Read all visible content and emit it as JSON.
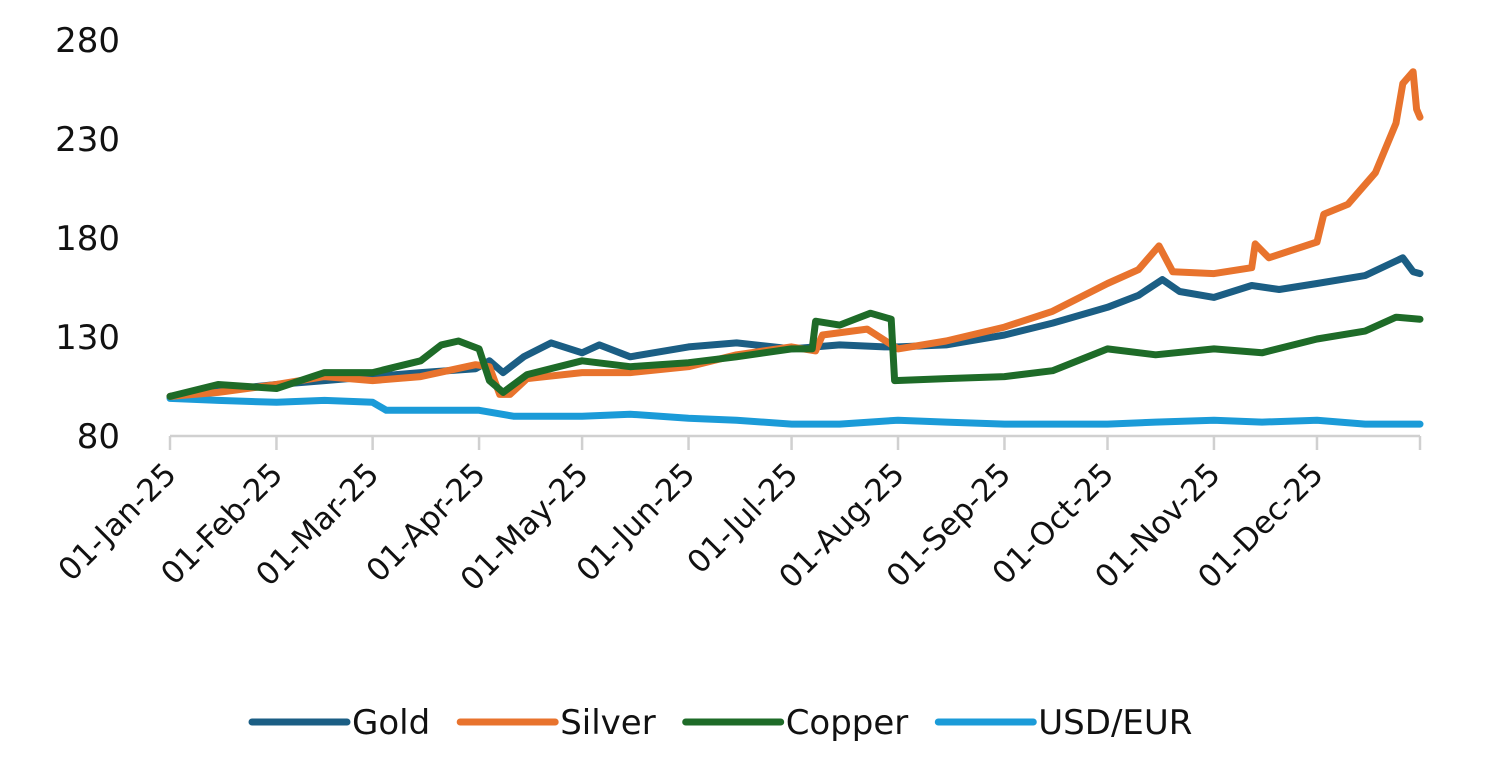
{
  "chart_data": {
    "type": "line",
    "title": "",
    "xlabel": "",
    "ylabel": "",
    "ylim": [
      80,
      280
    ],
    "y_ticks": [
      "80",
      "130",
      "180",
      "230",
      "280"
    ],
    "xlim": [
      "2025-01-01",
      "2025-12-31"
    ],
    "x_ticks": [
      {
        "date": "2025-01-01",
        "label": "01-Jan-25"
      },
      {
        "date": "2025-02-01",
        "label": "01-Feb-25"
      },
      {
        "date": "2025-03-01",
        "label": "01-Mar-25"
      },
      {
        "date": "2025-04-01",
        "label": "01-Apr-25"
      },
      {
        "date": "2025-05-01",
        "label": "01-May-25"
      },
      {
        "date": "2025-06-01",
        "label": "01-Jun-25"
      },
      {
        "date": "2025-07-01",
        "label": "01-Jul-25"
      },
      {
        "date": "2025-08-01",
        "label": "01-Aug-25"
      },
      {
        "date": "2025-09-01",
        "label": "01-Sep-25"
      },
      {
        "date": "2025-10-01",
        "label": "01-Oct-25"
      },
      {
        "date": "2025-11-01",
        "label": "01-Nov-25"
      },
      {
        "date": "2025-12-01",
        "label": "01-Dec-25"
      }
    ],
    "grid": false,
    "legend_position": "bottom",
    "series": [
      {
        "name": "Gold",
        "color": "#1b5e84",
        "points": [
          [
            "2025-01-01",
            100
          ],
          [
            "2025-01-15",
            103
          ],
          [
            "2025-02-01",
            106
          ],
          [
            "2025-02-15",
            108
          ],
          [
            "2025-03-01",
            110
          ],
          [
            "2025-03-15",
            112
          ],
          [
            "2025-03-31",
            114
          ],
          [
            "2025-04-04",
            118
          ],
          [
            "2025-04-08",
            112
          ],
          [
            "2025-04-14",
            120
          ],
          [
            "2025-04-22",
            127
          ],
          [
            "2025-05-01",
            122
          ],
          [
            "2025-05-06",
            126
          ],
          [
            "2025-05-15",
            120
          ],
          [
            "2025-06-01",
            125
          ],
          [
            "2025-06-15",
            127
          ],
          [
            "2025-07-01",
            124
          ],
          [
            "2025-07-15",
            126
          ],
          [
            "2025-07-28",
            125
          ],
          [
            "2025-08-01",
            125
          ],
          [
            "2025-08-15",
            126
          ],
          [
            "2025-09-01",
            131
          ],
          [
            "2025-09-15",
            137
          ],
          [
            "2025-10-01",
            145
          ],
          [
            "2025-10-10",
            151
          ],
          [
            "2025-10-17",
            159
          ],
          [
            "2025-10-22",
            153
          ],
          [
            "2025-11-01",
            150
          ],
          [
            "2025-11-12",
            156
          ],
          [
            "2025-11-20",
            154
          ],
          [
            "2025-12-01",
            157
          ],
          [
            "2025-12-15",
            161
          ],
          [
            "2025-12-26",
            170
          ],
          [
            "2025-12-29",
            163
          ],
          [
            "2025-12-31",
            162
          ]
        ]
      },
      {
        "name": "Silver",
        "color": "#e8732d",
        "points": [
          [
            "2025-01-01",
            100
          ],
          [
            "2025-01-15",
            102
          ],
          [
            "2025-02-01",
            106
          ],
          [
            "2025-02-15",
            110
          ],
          [
            "2025-03-01",
            108
          ],
          [
            "2025-03-15",
            110
          ],
          [
            "2025-03-31",
            116
          ],
          [
            "2025-04-04",
            115
          ],
          [
            "2025-04-07",
            101
          ],
          [
            "2025-04-10",
            101
          ],
          [
            "2025-04-15",
            109
          ],
          [
            "2025-05-01",
            112
          ],
          [
            "2025-05-15",
            112
          ],
          [
            "2025-06-01",
            115
          ],
          [
            "2025-06-15",
            121
          ],
          [
            "2025-07-01",
            125
          ],
          [
            "2025-07-08",
            123
          ],
          [
            "2025-07-10",
            131
          ],
          [
            "2025-07-23",
            134
          ],
          [
            "2025-08-01",
            124
          ],
          [
            "2025-08-15",
            128
          ],
          [
            "2025-09-01",
            135
          ],
          [
            "2025-09-15",
            143
          ],
          [
            "2025-10-01",
            157
          ],
          [
            "2025-10-10",
            164
          ],
          [
            "2025-10-16",
            176
          ],
          [
            "2025-10-20",
            163
          ],
          [
            "2025-11-01",
            162
          ],
          [
            "2025-11-12",
            165
          ],
          [
            "2025-11-13",
            177
          ],
          [
            "2025-11-17",
            170
          ],
          [
            "2025-12-01",
            178
          ],
          [
            "2025-12-03",
            192
          ],
          [
            "2025-12-10",
            197
          ],
          [
            "2025-12-18",
            213
          ],
          [
            "2025-12-24",
            238
          ],
          [
            "2025-12-26",
            258
          ],
          [
            "2025-12-29",
            264
          ],
          [
            "2025-12-30",
            245
          ],
          [
            "2025-12-31",
            241
          ]
        ]
      },
      {
        "name": "Copper",
        "color": "#1e6b28",
        "points": [
          [
            "2025-01-01",
            100
          ],
          [
            "2025-01-15",
            106
          ],
          [
            "2025-02-01",
            104
          ],
          [
            "2025-02-15",
            112
          ],
          [
            "2025-03-01",
            112
          ],
          [
            "2025-03-15",
            118
          ],
          [
            "2025-03-21",
            126
          ],
          [
            "2025-03-26",
            128
          ],
          [
            "2025-04-01",
            124
          ],
          [
            "2025-04-04",
            108
          ],
          [
            "2025-04-08",
            102
          ],
          [
            "2025-04-15",
            111
          ],
          [
            "2025-05-01",
            118
          ],
          [
            "2025-05-15",
            115
          ],
          [
            "2025-06-01",
            117
          ],
          [
            "2025-06-15",
            120
          ],
          [
            "2025-07-01",
            124
          ],
          [
            "2025-07-07",
            124
          ],
          [
            "2025-07-08",
            138
          ],
          [
            "2025-07-15",
            136
          ],
          [
            "2025-07-24",
            142
          ],
          [
            "2025-07-30",
            139
          ],
          [
            "2025-07-31",
            108
          ],
          [
            "2025-08-15",
            109
          ],
          [
            "2025-09-01",
            110
          ],
          [
            "2025-09-15",
            113
          ],
          [
            "2025-10-01",
            124
          ],
          [
            "2025-10-15",
            121
          ],
          [
            "2025-11-01",
            124
          ],
          [
            "2025-11-15",
            122
          ],
          [
            "2025-12-01",
            129
          ],
          [
            "2025-12-15",
            133
          ],
          [
            "2025-12-24",
            140
          ],
          [
            "2025-12-31",
            139
          ]
        ]
      },
      {
        "name": "USD/EUR",
        "color": "#1b9bd8",
        "points": [
          [
            "2025-01-01",
            99
          ],
          [
            "2025-01-15",
            98
          ],
          [
            "2025-02-01",
            97
          ],
          [
            "2025-02-15",
            98
          ],
          [
            "2025-03-01",
            97
          ],
          [
            "2025-03-05",
            93
          ],
          [
            "2025-03-20",
            93
          ],
          [
            "2025-04-01",
            93
          ],
          [
            "2025-04-11",
            90
          ],
          [
            "2025-05-01",
            90
          ],
          [
            "2025-05-15",
            91
          ],
          [
            "2025-06-01",
            89
          ],
          [
            "2025-06-15",
            88
          ],
          [
            "2025-07-01",
            86
          ],
          [
            "2025-07-15",
            86
          ],
          [
            "2025-08-01",
            88
          ],
          [
            "2025-08-15",
            87
          ],
          [
            "2025-09-01",
            86
          ],
          [
            "2025-09-15",
            86
          ],
          [
            "2025-10-01",
            86
          ],
          [
            "2025-10-15",
            87
          ],
          [
            "2025-11-01",
            88
          ],
          [
            "2025-11-15",
            87
          ],
          [
            "2025-12-01",
            88
          ],
          [
            "2025-12-15",
            86
          ],
          [
            "2025-12-31",
            86
          ]
        ]
      }
    ]
  }
}
